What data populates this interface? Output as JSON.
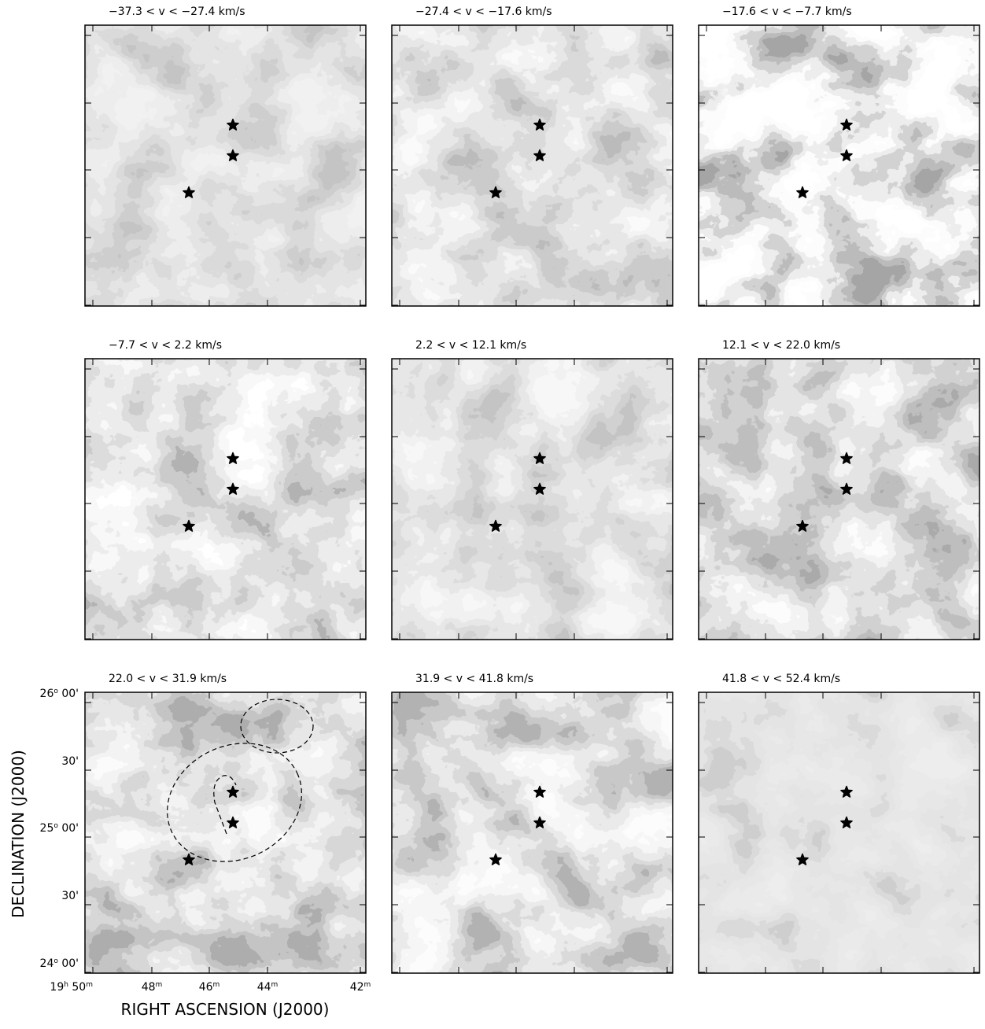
{
  "panels": [
    {
      "title": "−37.3 < v < −27.4 km/s"
    },
    {
      "title": "−27.4 < v < −17.6 km/s"
    },
    {
      "title": "−17.6 < v < −7.7 km/s"
    },
    {
      "title": "−7.7 < v < 2.2 km/s"
    },
    {
      "title": "2.2 < v < 12.1 km/s"
    },
    {
      "title": "12.1 < v < 22.0 km/s"
    },
    {
      "title": "22.0 < v < 31.9 km/s"
    },
    {
      "title": "31.9 < v < 41.8 km/s"
    },
    {
      "title": "41.8 < v < 52.4 km/s"
    }
  ],
  "y_axis": {
    "label": "DECLINATION (J2000)",
    "tick_labels": [
      [
        "26",
        "o",
        " 00'"
      ],
      [
        "30'"
      ],
      [
        "25",
        "o",
        " 00'"
      ],
      [
        "30'"
      ],
      [
        "24",
        "o",
        " 00'"
      ]
    ]
  },
  "x_axis": {
    "label": "RIGHT ASCENSION (J2000)",
    "tick_labels": [
      [
        "19",
        "h",
        " 50",
        "m"
      ],
      [
        "48",
        "m"
      ],
      [
        "46",
        "m"
      ],
      [
        "44",
        "m"
      ],
      [
        "42",
        "m"
      ]
    ]
  }
}
